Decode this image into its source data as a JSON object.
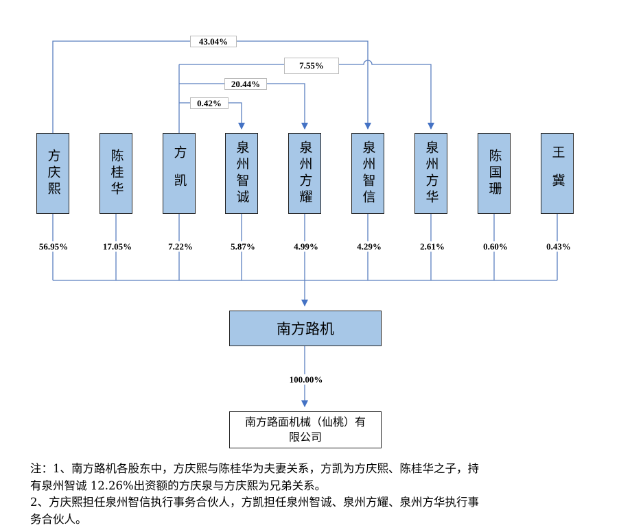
{
  "shareholders": [
    {
      "name": "方庆熙",
      "pct": "56.95%"
    },
    {
      "name": "陈桂华",
      "pct": "17.05%"
    },
    {
      "name": "方凯",
      "pct": "7.22%"
    },
    {
      "name": "泉州智诚",
      "pct": "5.87%"
    },
    {
      "name": "泉州方耀",
      "pct": "4.99%"
    },
    {
      "name": "泉州智信",
      "pct": "4.29%"
    },
    {
      "name": "泉州方华",
      "pct": "2.61%"
    },
    {
      "name": "陈国珊",
      "pct": "0.60%"
    },
    {
      "name": "王冀",
      "pct": "0.43%"
    }
  ],
  "top_links": [
    {
      "from": "方庆熙",
      "to": "泉州智信",
      "pct": "43.04%"
    },
    {
      "from": "方凯",
      "to": "泉州方华",
      "pct": "7.55%"
    },
    {
      "from": "方凯",
      "to": "泉州方耀",
      "pct": "20.44%"
    },
    {
      "from": "方凯",
      "to": "泉州智诚",
      "pct": "0.42%"
    }
  ],
  "company": {
    "name": "南方路机"
  },
  "subsidiary": {
    "name_line1": "南方路面机械（仙桃）有",
    "name_line2": "限公司",
    "pct": "100.00%"
  },
  "notes": {
    "line1": "注：1、南方路机各股东中，方庆熙与陈桂华为夫妻关系，方凯为方庆熙、陈桂华之子，持",
    "line2": "有泉州智诚 12.26%出资额的方庆泉与方庆熙为兄弟关系。",
    "line3": "2、方庆熙担任泉州智信执行事务合伙人，方凯担任泉州智诚、泉州方耀、泉州方华执行事",
    "line4": "务合伙人。"
  },
  "colors": {
    "box_fill": "#a7c7e7",
    "arrow": "#4472c4",
    "line": "#5b7fbf"
  }
}
